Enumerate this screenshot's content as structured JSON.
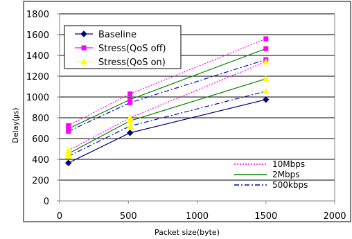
{
  "chart_data": {
    "type": "line",
    "xlabel": "Packet size(byte)",
    "ylabel": "Delay(㎲)",
    "xlim": [
      0,
      2000
    ],
    "ylim": [
      0,
      1800
    ],
    "x_ticks": [
      "0",
      "500",
      "1000",
      "1500",
      "2000"
    ],
    "y_ticks": [
      "0",
      "200",
      "400",
      "600",
      "800",
      "1000",
      "1200",
      "1400",
      "1600",
      "1800"
    ],
    "grid": "horizontal",
    "legend_top": {
      "placement": "top-left",
      "entries": [
        {
          "label": "Baseline",
          "color": "#000080",
          "marker": "diamond"
        },
        {
          "label": "Stress(QoS off)",
          "color": "#ff00ff",
          "marker": "square"
        },
        {
          "label": "Stress(QoS on)",
          "color": "#ffff00",
          "marker": "triangle"
        }
      ]
    },
    "legend_bottom": {
      "placement": "bottom-right",
      "entries": [
        {
          "label": "10Mbps",
          "color": "#ff00ff",
          "dash": "dotted"
        },
        {
          "label": "2Mbps",
          "color": "#008000",
          "dash": "solid"
        },
        {
          "label": "500kbps",
          "color": "#0000cc",
          "dash": "dashdot"
        }
      ]
    },
    "series": [
      {
        "group": "Baseline",
        "rate": "all",
        "marker": "diamond",
        "marker_color": "#000080",
        "line_color": "#000080",
        "dash": "solid",
        "x": [
          64,
          512,
          1500
        ],
        "y": [
          365,
          655,
          975
        ]
      },
      {
        "group": "Stress(QoS off)",
        "rate": "10Mbps",
        "marker": "square",
        "marker_color": "#ff00ff",
        "line_color": "#ff00ff",
        "dash": "dotted",
        "x": [
          64,
          512,
          1500
        ],
        "y": [
          725,
          1030,
          1560
        ]
      },
      {
        "group": "Stress(QoS off)",
        "rate": "2Mbps",
        "marker": "square",
        "marker_color": "#ff00ff",
        "line_color": "#008000",
        "dash": "solid",
        "x": [
          64,
          512,
          1500
        ],
        "y": [
          695,
          975,
          1465
        ]
      },
      {
        "group": "Stress(QoS off)",
        "rate": "500kbps",
        "marker": "square",
        "marker_color": "#ff00ff",
        "line_color": "#0000cc",
        "dash": "dashdot",
        "x": [
          64,
          512,
          1500
        ],
        "y": [
          670,
          945,
          1360
        ]
      },
      {
        "group": "Stress(QoS on)",
        "rate": "10Mbps",
        "marker": "triangle",
        "marker_color": "#ffff00",
        "line_color": "#ff00ff",
        "dash": "dotted",
        "x": [
          64,
          512,
          1500
        ],
        "y": [
          485,
          800,
          1340
        ]
      },
      {
        "group": "Stress(QoS on)",
        "rate": "2Mbps",
        "marker": "triangle",
        "marker_color": "#ffff00",
        "line_color": "#008000",
        "dash": "solid",
        "x": [
          64,
          512,
          1500
        ],
        "y": [
          455,
          770,
          1175
        ]
      },
      {
        "group": "Stress(QoS on)",
        "rate": "500kbps",
        "marker": "triangle",
        "marker_color": "#ffff00",
        "line_color": "#0000cc",
        "dash": "dashdot",
        "x": [
          64,
          512,
          1500
        ],
        "y": [
          430,
          720,
          1055
        ]
      }
    ]
  }
}
